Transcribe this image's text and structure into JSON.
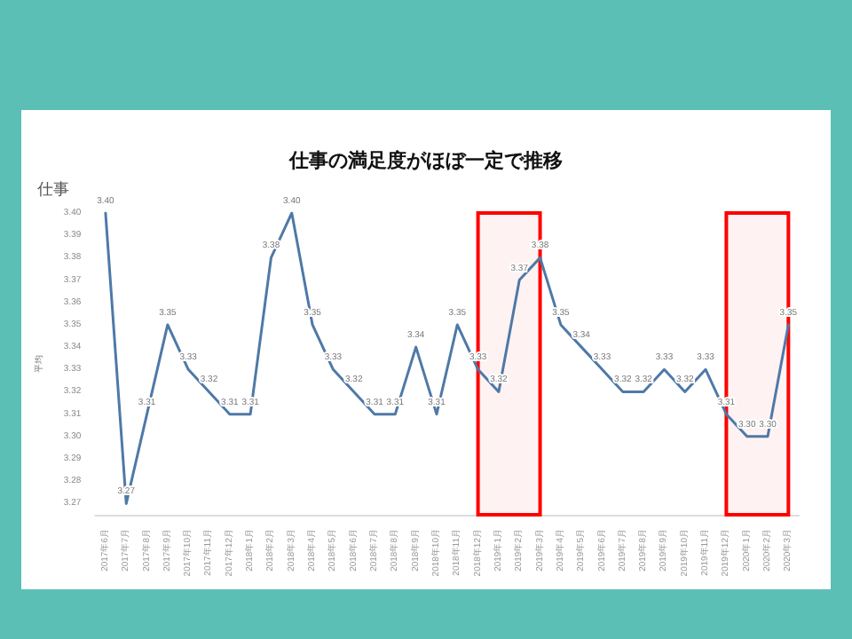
{
  "chart_data": {
    "type": "line",
    "title": "仕事の満足度がほぼ一定で推移",
    "subtitle": "仕事",
    "ylabel": "平均",
    "categories": [
      "2017年6月",
      "2017年7月",
      "2017年8月",
      "2017年9月",
      "2017年10月",
      "2017年11月",
      "2017年12月",
      "2018年1月",
      "2018年2月",
      "2018年3月",
      "2018年4月",
      "2018年5月",
      "2018年6月",
      "2018年7月",
      "2018年8月",
      "2018年9月",
      "2018年10月",
      "2018年11月",
      "2018年12月",
      "2019年1月",
      "2019年2月",
      "2019年3月",
      "2019年4月",
      "2019年5月",
      "2019年6月",
      "2019年7月",
      "2019年8月",
      "2019年9月",
      "2019年10月",
      "2019年11月",
      "2019年12月",
      "2020年1月",
      "2020年2月",
      "2020年3月"
    ],
    "series": [
      {
        "color": "#4e79a7",
        "values": [
          3.4,
          3.27,
          3.31,
          3.35,
          3.33,
          3.32,
          3.31,
          3.31,
          3.38,
          3.4,
          3.35,
          3.33,
          3.32,
          3.31,
          3.31,
          3.34,
          3.31,
          3.35,
          3.33,
          3.32,
          3.37,
          3.38,
          3.35,
          3.34,
          3.33,
          3.32,
          3.32,
          3.33,
          3.32,
          3.33,
          3.31,
          3.3,
          3.3,
          3.35
        ],
        "value_labels": [
          "3.40",
          "3.27",
          "3.31",
          "3.35",
          "3.33",
          "3.32",
          "3.31",
          "3.31",
          "3.38",
          "3.40",
          "3.35",
          "3.33",
          "3.32",
          "3.31",
          "3.31",
          "3.34",
          "3.31",
          "3.35",
          "3.33",
          "3.32",
          "3.37",
          "3.38",
          "3.35",
          "3.34",
          "3.33",
          "3.32",
          "3.32",
          "3.33",
          "3.32",
          "3.33",
          "3.31",
          "3.30",
          "3.30",
          "3.35"
        ]
      }
    ],
    "ylim": [
      3.265,
      3.4
    ],
    "yticks": [
      {
        "value": 3.27,
        "label": "3.27"
      },
      {
        "value": 3.28,
        "label": "3.28"
      },
      {
        "value": 3.29,
        "label": "3.29"
      },
      {
        "value": 3.3,
        "label": "3.30"
      },
      {
        "value": 3.31,
        "label": "3.31"
      },
      {
        "value": 3.32,
        "label": "3.32"
      },
      {
        "value": 3.33,
        "label": "3.33"
      },
      {
        "value": 3.34,
        "label": "3.34"
      },
      {
        "value": 3.35,
        "label": "3.35"
      },
      {
        "value": 3.36,
        "label": "3.36"
      },
      {
        "value": 3.37,
        "label": "3.37"
      },
      {
        "value": 3.38,
        "label": "3.38"
      },
      {
        "value": 3.39,
        "label": "3.39"
      },
      {
        "value": 3.4,
        "label": "3.40"
      }
    ],
    "bands": [
      {
        "axis": "x",
        "from": "2018年12月",
        "to": "2019年3月",
        "color": "#ff0000"
      },
      {
        "axis": "x",
        "from": "2019年12月",
        "to": "2020年3月",
        "color": "#ff0000"
      }
    ],
    "grid": false,
    "marker": "none",
    "line_style": "solid"
  }
}
